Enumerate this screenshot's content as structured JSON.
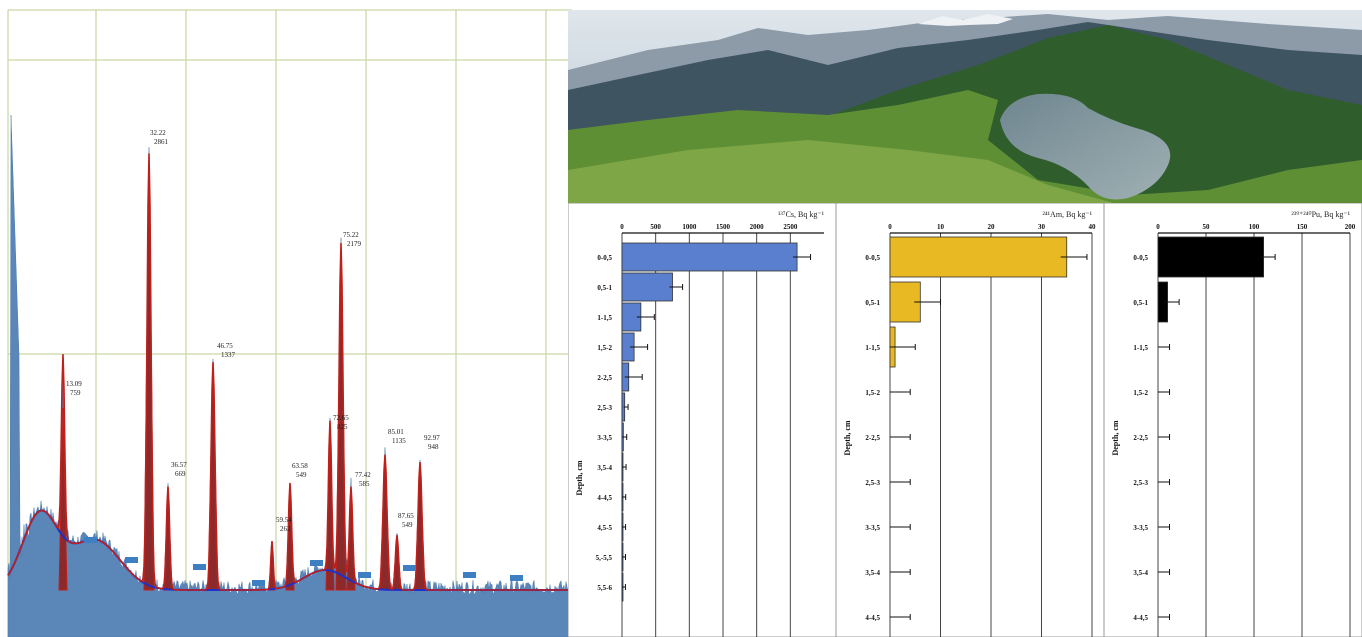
{
  "chart_data": [
    {
      "type": "line",
      "peaks": [
        {
          "label": "13.09",
          "value": "759"
        },
        {
          "label": "32.22",
          "value": "2861"
        },
        {
          "label": "36.57",
          "value": "669"
        },
        {
          "label": "46.75",
          "value": "1337"
        },
        {
          "label": "59.54",
          "value": "262"
        },
        {
          "label": "63.58",
          "value": "549"
        },
        {
          "label": "75.22",
          "value": "2179"
        },
        {
          "label": "72.65",
          "value": "825"
        },
        {
          "label": "77.42",
          "value": "585"
        },
        {
          "label": "85.01",
          "value": "1135"
        },
        {
          "label": "87.65",
          "value": "549"
        },
        {
          "label": "92.97",
          "value": "948"
        }
      ],
      "colors": {
        "fill": "#5b86b8",
        "fit": "#c0201c",
        "background_fit": "#1f2fc9",
        "grid": "#c9d6a3",
        "marker": "#3d7fc2"
      }
    },
    {
      "type": "bar",
      "orientation": "horizontal",
      "title": "¹³⁷Cs, Bq kg⁻¹",
      "ylabel": "Depth, cm",
      "categories": [
        "0-0,5",
        "0,5-1",
        "1-1,5",
        "1,5-2",
        "2-2,5",
        "2,5-3",
        "3-3,5",
        "3,5-4",
        "4-4,5",
        "4,5-5",
        "5,-5,5",
        "5,5-6"
      ],
      "values": [
        2600,
        750,
        280,
        180,
        100,
        40,
        20,
        10,
        5,
        3,
        2,
        1
      ],
      "errors": [
        200,
        150,
        200,
        200,
        200,
        50,
        50,
        50,
        50,
        50,
        50,
        50
      ],
      "xticks": [
        "0",
        "500",
        "1000",
        "1500",
        "2000",
        "2500"
      ],
      "xlim": [
        0,
        3000
      ],
      "color": "#5b7fcf"
    },
    {
      "type": "bar",
      "orientation": "horizontal",
      "title": "²⁴¹Am, Bq kg⁻¹",
      "ylabel": "Depth, cm",
      "categories": [
        "0-0,5",
        "0,5-1",
        "1-1,5",
        "1,5-2",
        "2-2,5",
        "2,5-3",
        "3-3,5",
        "3,5-4",
        "4-4,5"
      ],
      "values": [
        35,
        6,
        1,
        0,
        0,
        0,
        0,
        0,
        0
      ],
      "errors": [
        4,
        4,
        4,
        4,
        4,
        4,
        4,
        4,
        4
      ],
      "xticks": [
        "0",
        "10",
        "20",
        "30",
        "40"
      ],
      "xlim": [
        0,
        40
      ],
      "color": "#e8b923"
    },
    {
      "type": "bar",
      "orientation": "horizontal",
      "title": "²³⁹⁺²⁴⁰Pu, Bq kg⁻¹",
      "ylabel": "Depth, cm",
      "categories": [
        "0-0,5",
        "0,5-1",
        "1-1,5",
        "1,5-2",
        "2-2,5",
        "2,5-3",
        "3-3,5",
        "3,5-4",
        "4-4,5"
      ],
      "values": [
        110,
        10,
        0,
        0,
        0,
        0,
        0,
        0,
        0
      ],
      "errors": [
        12,
        12,
        12,
        12,
        12,
        12,
        12,
        12,
        12
      ],
      "xticks": [
        "0",
        "50",
        "100",
        "150",
        "200"
      ],
      "xlim": [
        0,
        200
      ],
      "color": "#000000"
    }
  ]
}
